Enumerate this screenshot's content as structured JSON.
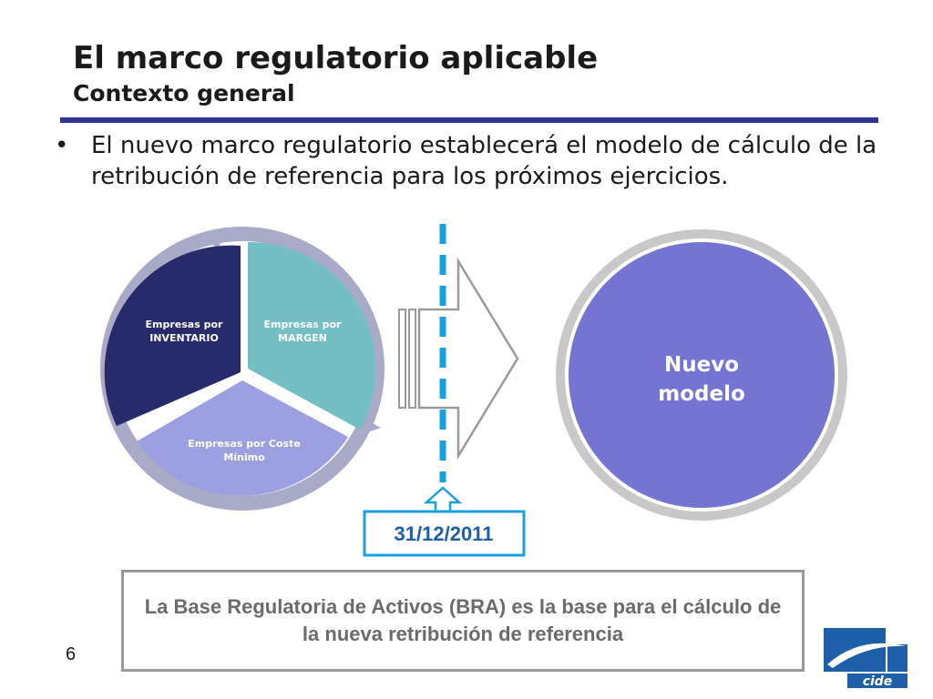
{
  "slide": {
    "title": "El marco regulatorio aplicable",
    "subtitle": "Contexto general",
    "bullet": "El nuevo marco regulatorio establecerá el modelo de cálculo de la retribución de referencia para los próximos ejercicios.",
    "page_number": "6"
  },
  "cycle": {
    "segments": [
      {
        "label_line1": "Empresas por",
        "label_line2": "INVENTARIO",
        "color": "#272a6b"
      },
      {
        "label_line1": "Empresas por",
        "label_line2": "MARGEN",
        "color": "#73bfc4"
      },
      {
        "label_line1": "Empresas por Coste",
        "label_line2": "Mínimo",
        "color": "#9c9fe0"
      }
    ],
    "ring_color": "#a9aac8"
  },
  "timeline": {
    "date": "31/12/2011",
    "line_color": "#1aa0de"
  },
  "new_model": {
    "label_line1": "Nuevo",
    "label_line2": "modelo",
    "fill_color": "#7474d2",
    "ring_color": "#c8c8c8"
  },
  "callout": {
    "text": "La Base Regulatoria de Activos (BRA) es la base para el cálculo de la nueva retribución de referencia"
  },
  "logo": {
    "text": "cide",
    "color": "#1d5fa8"
  }
}
